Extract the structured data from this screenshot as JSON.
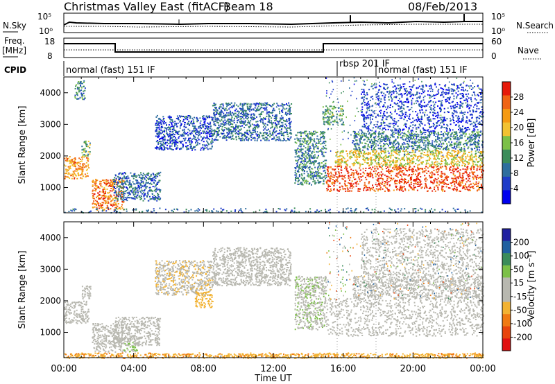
{
  "header": {
    "title": "Christmas Valley East (fitACF)",
    "beam": "Beam 18",
    "date": "08/Feb/2013"
  },
  "noise_panel": {
    "left_label": "N.Sky",
    "right_label": "N.Search",
    "left_ticks": [
      "10^5",
      "10^0"
    ],
    "right_ticks": [
      "10^5",
      "10^0"
    ]
  },
  "freq_panel": {
    "left_label_line1": "Freq.",
    "left_label_line2": "[MHz]",
    "right_label": "Nave",
    "left_ticks": [
      "18",
      "8"
    ],
    "right_ticks": [
      "60",
      "0"
    ]
  },
  "cpid": {
    "label": "CPID",
    "segments": [
      "normal (fast) 151 IF",
      "rbsp 201 IF",
      "normal (fast) 151 IF"
    ]
  },
  "colors": {
    "power": [
      "#0000ee",
      "#1e3cc8",
      "#2e6e9e",
      "#3b8c5a",
      "#7cc048",
      "#f2c232",
      "#f59a12",
      "#f06414",
      "#e61a0a"
    ],
    "velocity": [
      "#2020a0",
      "#2060a0",
      "#3b8c5a",
      "#7cc048",
      "#b8b8b0",
      "#b8b8b0",
      "#f2b232",
      "#f07a12",
      "#e8440c",
      "#e01010"
    ],
    "gray": "#c0c0b8"
  },
  "chart_data": [
    {
      "type": "heatmap",
      "name": "Power",
      "xlabel": "",
      "ylabel": "Slant Range [km]",
      "yticks": [
        "1000",
        "2000",
        "3000",
        "4000"
      ],
      "ylim": [
        200,
        4500
      ],
      "xlim": [
        "00:00",
        "24:00"
      ],
      "colorbar": {
        "title": "Power [dB]",
        "ticks": [
          "28",
          "24",
          "20",
          "16",
          "12",
          "8",
          "4"
        ],
        "range": [
          0,
          30
        ]
      },
      "bands": [
        {
          "t0": 0.0,
          "t1": 1.4,
          "r0": 1300,
          "r1": 2000,
          "v": 22
        },
        {
          "t0": 1.0,
          "t1": 1.5,
          "r0": 2000,
          "r1": 2500,
          "v": 14
        },
        {
          "t0": 0.6,
          "t1": 1.2,
          "r0": 3800,
          "r1": 4400,
          "v": 10
        },
        {
          "t0": 1.6,
          "t1": 3.4,
          "r0": 300,
          "r1": 1300,
          "v": 24
        },
        {
          "t0": 2.8,
          "t1": 5.5,
          "r0": 600,
          "r1": 1500,
          "v": 8
        },
        {
          "t0": 5.2,
          "t1": 8.5,
          "r0": 2200,
          "r1": 3300,
          "v": 6
        },
        {
          "t0": 8.5,
          "t1": 13.0,
          "r0": 2500,
          "r1": 3700,
          "v": 8
        },
        {
          "t0": 13.2,
          "t1": 15.0,
          "r0": 1100,
          "r1": 2800,
          "v": 10
        },
        {
          "t0": 14.8,
          "t1": 16.0,
          "r0": 3000,
          "r1": 3600,
          "v": 12
        },
        {
          "t0": 15.0,
          "t1": 24.0,
          "r0": 900,
          "r1": 1700,
          "v": 27
        },
        {
          "t0": 15.5,
          "t1": 24.0,
          "r0": 1700,
          "r1": 2200,
          "v": 18
        },
        {
          "t0": 16.5,
          "t1": 24.0,
          "r0": 2200,
          "r1": 2800,
          "v": 10
        },
        {
          "t0": 17.0,
          "t1": 24.0,
          "r0": 2800,
          "r1": 4300,
          "v": 5
        }
      ]
    },
    {
      "type": "heatmap",
      "name": "Velocity",
      "xlabel": "Time UT",
      "ylabel": "Slant Range [km]",
      "yticks": [
        "1000",
        "2000",
        "3000",
        "4000"
      ],
      "ylim": [
        200,
        4500
      ],
      "xlim": [
        "00:00",
        "24:00"
      ],
      "xticks": [
        "00:00",
        "04:00",
        "08:00",
        "12:00",
        "16:00",
        "20:00",
        "00:00"
      ],
      "colorbar": {
        "title": "Velocity [m s⁻¹]",
        "ticks": [
          "200",
          "100",
          "50",
          "15",
          "-15",
          "-50",
          "-100",
          "-200"
        ],
        "range": [
          -250,
          250
        ]
      },
      "bands": [
        {
          "t0": 0.0,
          "t1": 1.4,
          "r0": 1300,
          "r1": 2000,
          "v": 0
        },
        {
          "t0": 1.0,
          "t1": 1.5,
          "r0": 2000,
          "r1": 2500,
          "v": 0
        },
        {
          "t0": 1.6,
          "t1": 3.4,
          "r0": 400,
          "r1": 1300,
          "v": 0
        },
        {
          "t0": 3.4,
          "t1": 4.2,
          "r0": 400,
          "r1": 700,
          "v": 60
        },
        {
          "t0": 2.8,
          "t1": 5.5,
          "r0": 600,
          "r1": 1500,
          "v": -30
        },
        {
          "t0": 5.2,
          "t1": 8.5,
          "r0": 2200,
          "r1": 3300,
          "v": -40
        },
        {
          "t0": 7.5,
          "t1": 8.5,
          "r0": 1800,
          "r1": 2300,
          "v": -80
        },
        {
          "t0": 8.5,
          "t1": 13.0,
          "r0": 2500,
          "r1": 3700,
          "v": -20
        },
        {
          "t0": 13.2,
          "t1": 15.0,
          "r0": 1100,
          "r1": 2800,
          "v": 40
        },
        {
          "t0": 15.0,
          "t1": 24.0,
          "r0": 900,
          "r1": 2100,
          "v": 0
        },
        {
          "t0": 16.5,
          "t1": 24.0,
          "r0": 2100,
          "r1": 2800,
          "v": 0
        },
        {
          "t0": 17.0,
          "t1": 24.0,
          "r0": 2800,
          "r1": 4300,
          "v": -30
        },
        {
          "t0": 0.0,
          "t1": 24.0,
          "r0": 200,
          "r1": 350,
          "v": -90
        }
      ]
    }
  ]
}
